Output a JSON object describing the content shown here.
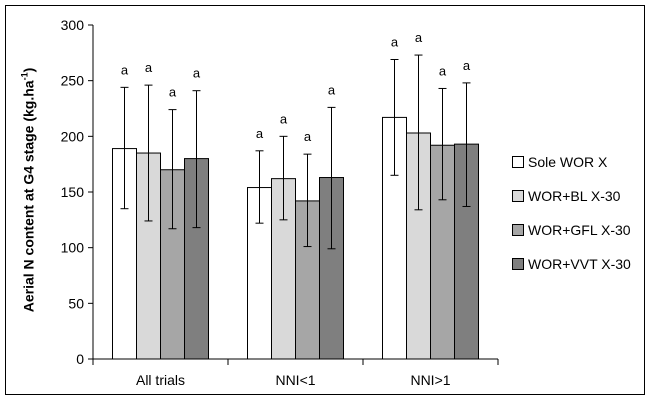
{
  "chart_data": {
    "type": "bar",
    "title": "",
    "xlabel": "",
    "ylabel_main": "Aerial N content at G4 stage (kg.ha",
    "ylabel_sup": "-1",
    "ylabel_tail": ")",
    "ylim": [
      0,
      300
    ],
    "yticks": [
      0,
      50,
      100,
      150,
      200,
      250,
      300
    ],
    "categories": [
      "All trials",
      "NNI<1",
      "NNI>1"
    ],
    "series": [
      {
        "name": "Sole WOR X",
        "color": "#ffffff",
        "values": [
          189,
          154,
          217
        ],
        "error_low": [
          135,
          122,
          165
        ],
        "error_high": [
          244,
          187,
          269
        ],
        "letters": [
          "a",
          "a",
          "a"
        ]
      },
      {
        "name": "WOR+BL X-30",
        "color": "#d9d9d9",
        "values": [
          185,
          162,
          203
        ],
        "error_low": [
          124,
          125,
          134
        ],
        "error_high": [
          246,
          200,
          273
        ],
        "letters": [
          "a",
          "a",
          "a"
        ]
      },
      {
        "name": "WOR+GFL X-30",
        "color": "#a6a6a6",
        "values": [
          170,
          142,
          192
        ],
        "error_low": [
          117,
          101,
          143
        ],
        "error_high": [
          224,
          184,
          243
        ],
        "letters": [
          "a",
          "a",
          "a"
        ]
      },
      {
        "name": "WOR+VVT X-30",
        "color": "#7f7f7f",
        "values": [
          180,
          163,
          193
        ],
        "error_low": [
          118,
          99,
          137
        ],
        "error_high": [
          241,
          226,
          248
        ],
        "letters": [
          "a",
          "a",
          "a"
        ]
      }
    ],
    "legend_position": "right",
    "grid": false
  }
}
